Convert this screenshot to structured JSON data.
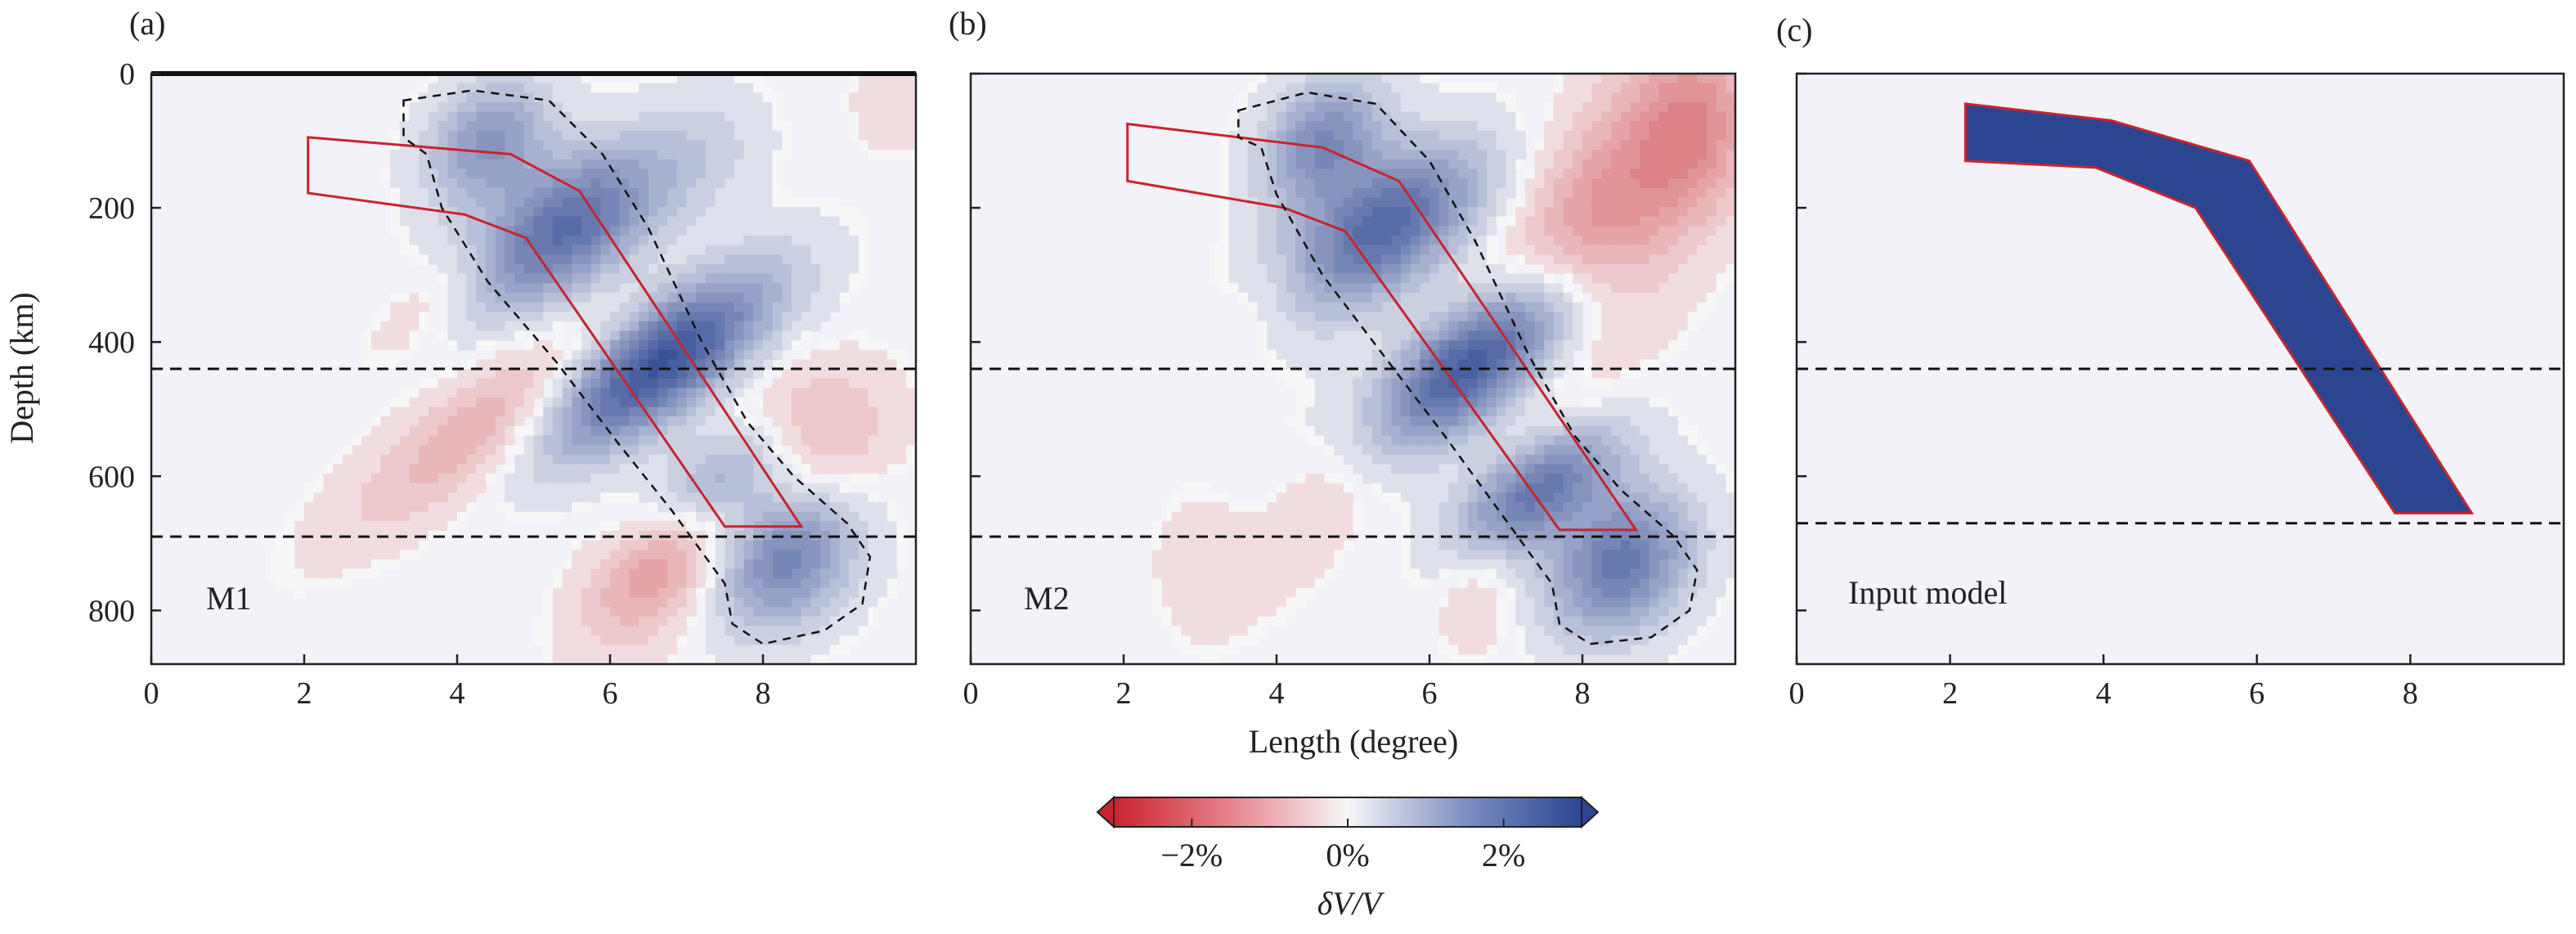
{
  "figure": {
    "ylabel": "Depth (km)",
    "xlabel": "Length (degree)",
    "colorbar": {
      "label": "δV/V",
      "ticks": [
        "−2%",
        "0%",
        "2%"
      ],
      "tick_values": [
        -2,
        0,
        2
      ],
      "range": [
        -3,
        3
      ],
      "colors": {
        "negative": "#c8242e",
        "zero": "#f7f7f7",
        "positive": "#2b4591"
      }
    }
  },
  "chart_data": [
    {
      "type": "heatmap",
      "panel_label": "(a)",
      "inset_label": "M1",
      "xlim": [
        0,
        10
      ],
      "ylim": [
        880,
        0
      ],
      "x_ticks": [
        0,
        2,
        4,
        6,
        8
      ],
      "y_ticks": [
        0,
        200,
        400,
        600,
        800
      ],
      "show_x_labels": true,
      "show_y_labels": true,
      "discontinuities_km": [
        440,
        690
      ],
      "slab_outline": [
        [
          2.05,
          95
        ],
        [
          4.7,
          120
        ],
        [
          5.6,
          175
        ],
        [
          8.5,
          675
        ],
        [
          7.5,
          675
        ],
        [
          4.9,
          245
        ],
        [
          4.1,
          210
        ],
        [
          2.05,
          178
        ]
      ],
      "fast_anomaly_contour": [
        [
          3.3,
          40
        ],
        [
          4.2,
          25
        ],
        [
          5.2,
          40
        ],
        [
          5.9,
          120
        ],
        [
          6.5,
          230
        ],
        [
          7.2,
          400
        ],
        [
          7.8,
          520
        ],
        [
          8.4,
          600
        ],
        [
          9.1,
          670
        ],
        [
          9.4,
          720
        ],
        [
          9.3,
          790
        ],
        [
          8.8,
          830
        ],
        [
          8.0,
          850
        ],
        [
          7.6,
          820
        ],
        [
          7.5,
          760
        ],
        [
          6.8,
          650
        ],
        [
          6.1,
          550
        ],
        [
          5.3,
          430
        ],
        [
          4.4,
          310
        ],
        [
          3.8,
          200
        ],
        [
          3.6,
          120
        ],
        [
          3.3,
          95
        ]
      ],
      "anomalies": [
        {
          "x": 6.6,
          "z": 430,
          "sx": 0.55,
          "sz": 130,
          "amp": 2.9,
          "rot": -50
        },
        {
          "x": 5.4,
          "z": 230,
          "sx": 0.6,
          "sz": 110,
          "amp": 2.2,
          "rot": -50
        },
        {
          "x": 4.4,
          "z": 100,
          "sx": 0.5,
          "sz": 70,
          "amp": 1.4,
          "rot": -30
        },
        {
          "x": 8.3,
          "z": 720,
          "sx": 0.6,
          "sz": 80,
          "amp": 1.8,
          "rot": -30
        },
        {
          "x": 7.3,
          "z": 610,
          "sx": 0.45,
          "sz": 90,
          "amp": 1.9,
          "rot": -50
        },
        {
          "x": 7.3,
          "z": 115,
          "sx": 0.55,
          "sz": 70,
          "amp": 0.35,
          "rot": -20
        },
        {
          "x": 4.7,
          "z": 500,
          "sx": 0.5,
          "sz": 180,
          "amp": -1.0,
          "rot": -50
        },
        {
          "x": 6.8,
          "z": 690,
          "sx": 0.55,
          "sz": 110,
          "amp": -1.5,
          "rot": -30
        },
        {
          "x": 8.6,
          "z": 540,
          "sx": 0.7,
          "sz": 80,
          "amp": -0.9,
          "rot": -30
        },
        {
          "x": 3.8,
          "z": 320,
          "sx": 0.35,
          "sz": 90,
          "amp": -0.45,
          "rot": -40
        },
        {
          "x": 9.7,
          "z": 40,
          "sx": 0.4,
          "sz": 60,
          "amp": -0.3,
          "rot": 0
        }
      ]
    },
    {
      "type": "heatmap",
      "panel_label": "(b)",
      "inset_label": "M2",
      "xlim": [
        0,
        10
      ],
      "ylim": [
        880,
        0
      ],
      "x_ticks": [
        0,
        2,
        4,
        6,
        8
      ],
      "y_ticks": [
        0,
        200,
        400,
        600,
        800
      ],
      "show_x_labels": true,
      "show_y_labels": false,
      "discontinuities_km": [
        440,
        690
      ],
      "slab_outline": [
        [
          2.05,
          75
        ],
        [
          4.6,
          110
        ],
        [
          5.6,
          160
        ],
        [
          8.7,
          680
        ],
        [
          7.7,
          680
        ],
        [
          4.9,
          235
        ],
        [
          4.1,
          200
        ],
        [
          2.05,
          160
        ]
      ],
      "fast_anomaly_contour": [
        [
          3.5,
          55
        ],
        [
          4.4,
          28
        ],
        [
          5.3,
          45
        ],
        [
          6.0,
          130
        ],
        [
          6.6,
          250
        ],
        [
          7.3,
          420
        ],
        [
          7.9,
          540
        ],
        [
          8.5,
          620
        ],
        [
          9.2,
          690
        ],
        [
          9.5,
          740
        ],
        [
          9.4,
          800
        ],
        [
          8.9,
          840
        ],
        [
          8.1,
          850
        ],
        [
          7.7,
          820
        ],
        [
          7.6,
          760
        ],
        [
          6.9,
          650
        ],
        [
          6.2,
          540
        ],
        [
          5.4,
          420
        ],
        [
          4.6,
          300
        ],
        [
          4.0,
          180
        ],
        [
          3.8,
          110
        ],
        [
          3.5,
          95
        ]
      ],
      "anomalies": [
        {
          "x": 6.6,
          "z": 430,
          "sx": 0.55,
          "sz": 130,
          "amp": 2.9,
          "rot": -50
        },
        {
          "x": 5.4,
          "z": 230,
          "sx": 0.6,
          "sz": 110,
          "amp": 2.3,
          "rot": -50
        },
        {
          "x": 4.6,
          "z": 100,
          "sx": 0.5,
          "sz": 70,
          "amp": 1.6,
          "rot": -30
        },
        {
          "x": 8.5,
          "z": 730,
          "sx": 0.6,
          "sz": 80,
          "amp": 2.0,
          "rot": -30
        },
        {
          "x": 7.4,
          "z": 620,
          "sx": 0.45,
          "sz": 90,
          "amp": 2.0,
          "rot": -50
        },
        {
          "x": 8.3,
          "z": 230,
          "sx": 0.75,
          "sz": 190,
          "amp": -1.4,
          "rot": -25
        },
        {
          "x": 9.5,
          "z": 80,
          "sx": 0.5,
          "sz": 90,
          "amp": -0.8,
          "rot": 0
        },
        {
          "x": 5.0,
          "z": 560,
          "sx": 0.45,
          "sz": 160,
          "amp": -0.55,
          "rot": -30
        },
        {
          "x": 3.0,
          "z": 730,
          "sx": 0.4,
          "sz": 70,
          "amp": -0.35,
          "rot": 0
        },
        {
          "x": 6.6,
          "z": 780,
          "sx": 0.35,
          "sz": 60,
          "amp": -0.4,
          "rot": 0
        },
        {
          "x": 3.9,
          "z": 330,
          "sx": 0.35,
          "sz": 90,
          "amp": -0.3,
          "rot": -40
        }
      ]
    },
    {
      "type": "heatmap",
      "panel_label": "(c)",
      "inset_label": "Input model",
      "xlim": [
        0,
        10
      ],
      "ylim": [
        880,
        0
      ],
      "x_ticks": [
        0,
        2,
        4,
        6,
        8
      ],
      "y_ticks": [
        0,
        200,
        400,
        600,
        800
      ],
      "show_x_labels": true,
      "show_y_labels": false,
      "discontinuities_km": [
        440,
        670
      ],
      "slab_outline": [
        [
          2.2,
          45
        ],
        [
          4.1,
          70
        ],
        [
          5.9,
          130
        ],
        [
          8.8,
          655
        ],
        [
          7.8,
          655
        ],
        [
          5.2,
          200
        ],
        [
          3.9,
          140
        ],
        [
          2.2,
          130
        ]
      ],
      "slab_filled": true,
      "slab_fill_value": 3,
      "anomalies": []
    }
  ]
}
